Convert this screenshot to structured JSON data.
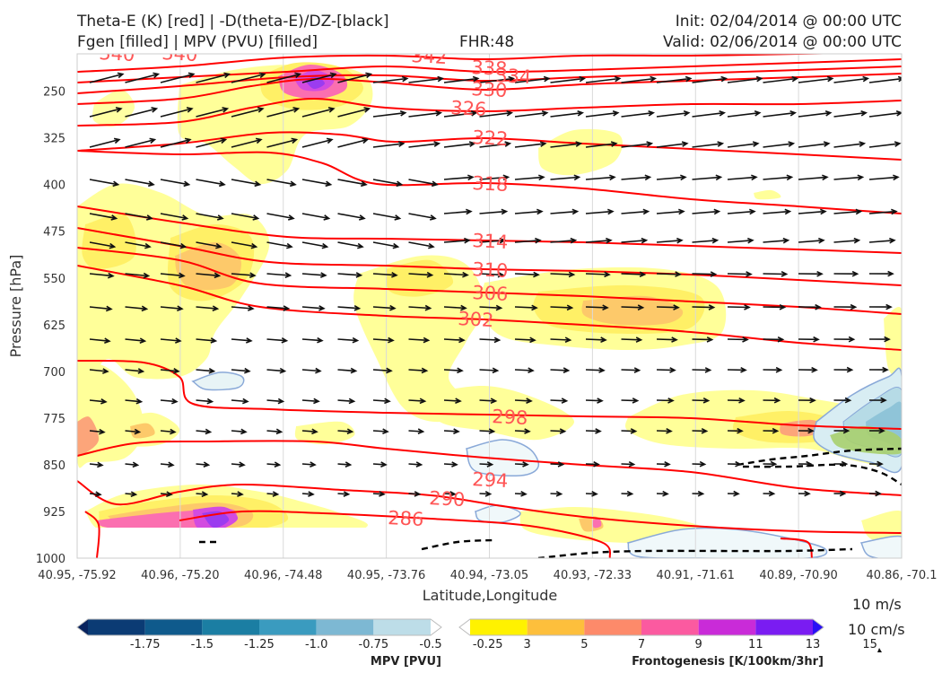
{
  "header": {
    "title_line1": "Theta-E (K) [red] | -D(theta-E)/DZ-[black]",
    "title_line2": "Fgen [filled] | MPV (PVU) [filled]",
    "fhr": "FHR:48",
    "init": "Init: 02/04/2014 @ 00:00 UTC",
    "valid": "Valid: 02/06/2014 @ 00:00 UTC"
  },
  "chart_data": {
    "type": "cross-section",
    "xlabel": "Latitude,Longitude",
    "ylabel": "Pressure [hPa]",
    "x_ticks": [
      "40.95, -75.92",
      "40.96, -75.20",
      "40.96, -74.48",
      "40.95, -73.76",
      "40.94, -73.05",
      "40.93, -72.33",
      "40.91, -71.61",
      "40.89, -70.90",
      "40.86, -70.1"
    ],
    "y_ticks": [
      250,
      325,
      400,
      475,
      550,
      625,
      700,
      775,
      850,
      925,
      1000
    ],
    "ylim": [
      1000,
      190
    ],
    "y_axis_inverted": true,
    "theta_e_contours": [
      {
        "value": 342,
        "label": "342"
      },
      {
        "value": 340,
        "label": "340"
      },
      {
        "value": 338,
        "label": "338"
      },
      {
        "value": 334,
        "label": "334"
      },
      {
        "value": 330,
        "label": "330"
      },
      {
        "value": 326,
        "label": "326"
      },
      {
        "value": 322,
        "label": "322"
      },
      {
        "value": 318,
        "label": "318"
      },
      {
        "value": 314,
        "label": "314"
      },
      {
        "value": 310,
        "label": "310"
      },
      {
        "value": 306,
        "label": "306"
      },
      {
        "value": 302,
        "label": "302"
      },
      {
        "value": 298,
        "label": "298"
      },
      {
        "value": 294,
        "label": "294"
      },
      {
        "value": 290,
        "label": "290"
      },
      {
        "value": 286,
        "label": "286"
      }
    ],
    "colorbars": {
      "mpv": {
        "label": "MPV [PVU]",
        "ticks": [
          "-1.75",
          "-1.5",
          "-1.25",
          "-1.0",
          "-0.75",
          "-0.5",
          "-0.25"
        ],
        "colors": [
          "#08235e",
          "#0b3b74",
          "#0f5a8c",
          "#1b7ea3",
          "#3a9bbf",
          "#7db8d3",
          "#bddde8",
          "#ffffff"
        ]
      },
      "fgen": {
        "label": "Frontogenesis [K/100km/3hr]",
        "ticks": [
          "3",
          "5",
          "7",
          "9",
          "11",
          "13",
          "15"
        ],
        "colors": [
          "#ffffff",
          "#fff200",
          "#fdbf3c",
          "#fd8a6a",
          "#fb5aa0",
          "#c92bd8",
          "#7a1cf2",
          "#2a10f5"
        ]
      }
    },
    "wind_scale": [
      "10 m/s",
      "10 cm/s"
    ],
    "line_colors": {
      "theta_e": "#ff0000",
      "dthetae_dz": "#000000",
      "wind": "#111111"
    }
  }
}
